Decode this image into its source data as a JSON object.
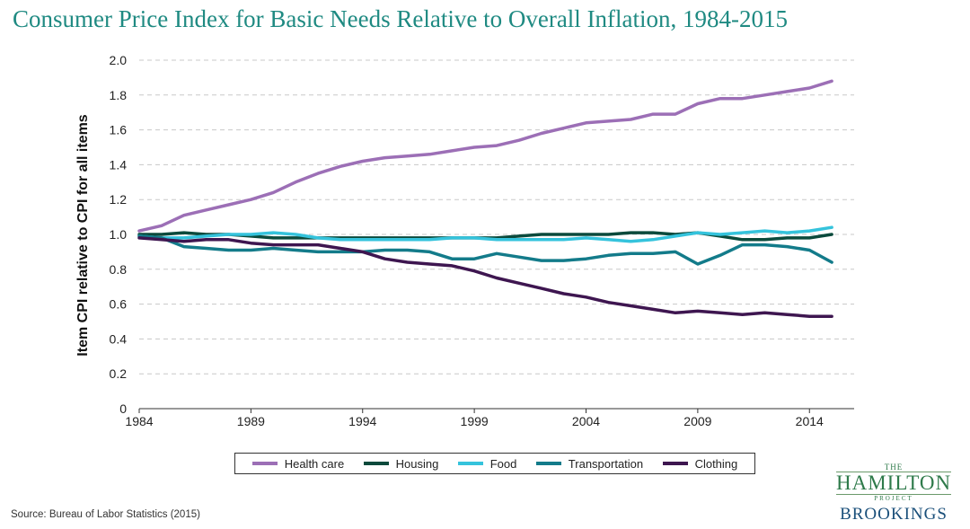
{
  "title": "Consumer Price Index for Basic Needs Relative to Overall Inflation, 1984-2015",
  "source": "Source: Bureau of Labor Statistics (2015)",
  "logo": {
    "the": "THE",
    "hamilton": "HAMILTON",
    "project": "PROJECT",
    "brookings": "BROOKINGS"
  },
  "chart_data": {
    "type": "line",
    "title": "Consumer Price Index for Basic Needs Relative to Overall Inflation, 1984-2015",
    "xlabel": "",
    "ylabel": "Item CPI relative to CPI for all items",
    "xlim": [
      1984,
      2016
    ],
    "ylim": [
      0,
      2.0
    ],
    "yticks": [
      "0",
      "0.2",
      "0.4",
      "0.6",
      "0.8",
      "1.0",
      "1.2",
      "1.4",
      "1.6",
      "1.8",
      "2.0"
    ],
    "xticks": [
      "1984",
      "1989",
      "1994",
      "1999",
      "2004",
      "2009",
      "2014"
    ],
    "grid": "horizontal dashed",
    "legend_position": "bottom",
    "x": [
      1984,
      1985,
      1986,
      1987,
      1988,
      1989,
      1990,
      1991,
      1992,
      1993,
      1994,
      1995,
      1996,
      1997,
      1998,
      1999,
      2000,
      2001,
      2002,
      2003,
      2004,
      2005,
      2006,
      2007,
      2008,
      2009,
      2010,
      2011,
      2012,
      2013,
      2014,
      2015
    ],
    "series": [
      {
        "name": "Health care",
        "color": "#9c6fb6",
        "values": [
          1.02,
          1.05,
          1.11,
          1.14,
          1.17,
          1.2,
          1.24,
          1.3,
          1.35,
          1.39,
          1.42,
          1.44,
          1.45,
          1.46,
          1.48,
          1.5,
          1.51,
          1.54,
          1.58,
          1.61,
          1.64,
          1.65,
          1.66,
          1.69,
          1.69,
          1.75,
          1.78,
          1.78,
          1.8,
          1.82,
          1.84,
          1.88
        ]
      },
      {
        "name": "Housing",
        "color": "#0b4a3c",
        "values": [
          1.0,
          1.0,
          1.01,
          1.0,
          1.0,
          0.99,
          0.98,
          0.98,
          0.98,
          0.98,
          0.98,
          0.98,
          0.98,
          0.98,
          0.98,
          0.98,
          0.98,
          0.99,
          1.0,
          1.0,
          1.0,
          1.0,
          1.01,
          1.01,
          1.0,
          1.01,
          0.99,
          0.97,
          0.97,
          0.98,
          0.98,
          1.0
        ]
      },
      {
        "name": "Food",
        "color": "#35c3dc",
        "values": [
          0.99,
          0.98,
          0.98,
          0.99,
          1.0,
          1.0,
          1.01,
          1.0,
          0.98,
          0.97,
          0.97,
          0.97,
          0.97,
          0.97,
          0.98,
          0.98,
          0.97,
          0.97,
          0.97,
          0.97,
          0.98,
          0.97,
          0.96,
          0.97,
          0.99,
          1.01,
          1.0,
          1.01,
          1.02,
          1.01,
          1.02,
          1.04
        ]
      },
      {
        "name": "Transportation",
        "color": "#137b8a",
        "values": [
          0.99,
          0.98,
          0.93,
          0.92,
          0.91,
          0.91,
          0.92,
          0.91,
          0.9,
          0.9,
          0.9,
          0.91,
          0.91,
          0.9,
          0.86,
          0.86,
          0.89,
          0.87,
          0.85,
          0.85,
          0.86,
          0.88,
          0.89,
          0.89,
          0.9,
          0.83,
          0.88,
          0.94,
          0.94,
          0.93,
          0.91,
          0.84
        ]
      },
      {
        "name": "Clothing",
        "color": "#3e1650",
        "values": [
          0.98,
          0.97,
          0.96,
          0.97,
          0.97,
          0.95,
          0.94,
          0.94,
          0.94,
          0.92,
          0.9,
          0.86,
          0.84,
          0.83,
          0.82,
          0.79,
          0.75,
          0.72,
          0.69,
          0.66,
          0.64,
          0.61,
          0.59,
          0.57,
          0.55,
          0.56,
          0.55,
          0.54,
          0.55,
          0.54,
          0.53,
          0.53
        ]
      }
    ]
  }
}
